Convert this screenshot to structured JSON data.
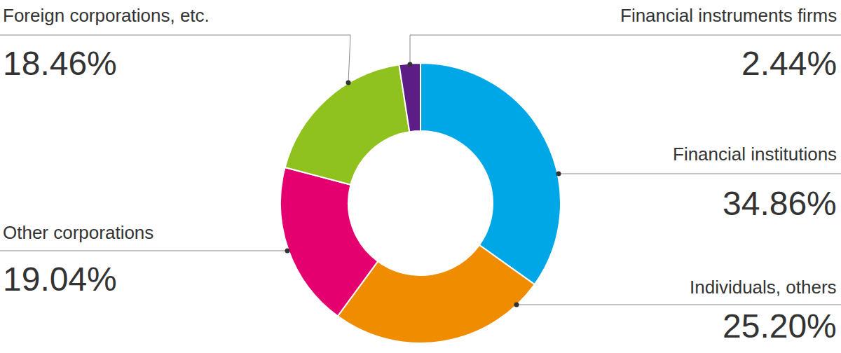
{
  "chart_data": {
    "type": "pie",
    "categories": [
      "Financial institutions",
      "Individuals, others",
      "Other corporations",
      "Foreign corporations, etc.",
      "Financial instruments firms"
    ],
    "values": [
      34.86,
      25.2,
      19.04,
      18.46,
      2.44
    ],
    "value_labels": [
      "34.86%",
      "25.20%",
      "19.04%",
      "18.46%",
      "2.44%"
    ],
    "colors": [
      "#00a7e6",
      "#ef8c00",
      "#e4006f",
      "#8fc21f",
      "#5d1d86"
    ],
    "data_labels": true
  }
}
